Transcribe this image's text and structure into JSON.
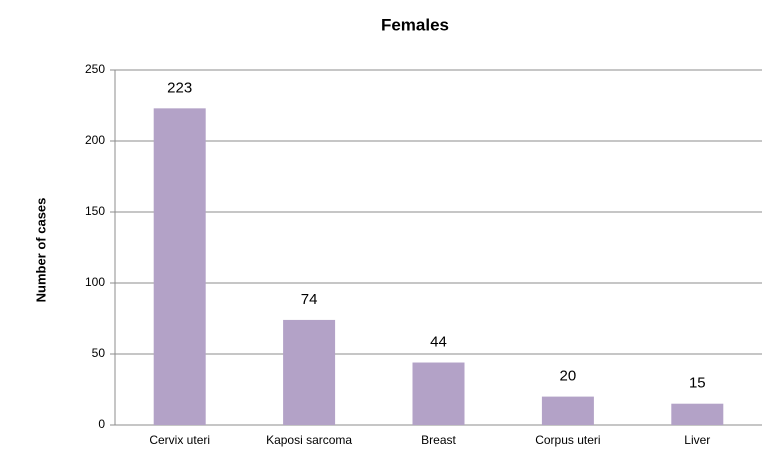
{
  "chart_data": {
    "type": "bar",
    "title": "Females",
    "y_label": "Number of cases",
    "categories": [
      "Cervix uteri",
      "Kaposi sarcoma",
      "Breast",
      "Corpus uteri",
      "Liver"
    ],
    "values": [
      223,
      74,
      44,
      20,
      15
    ],
    "color": "#b3a2c7",
    "ylim": [
      0,
      250
    ],
    "yticks": [
      0,
      50,
      100,
      150,
      200,
      250
    ],
    "grid": true
  }
}
